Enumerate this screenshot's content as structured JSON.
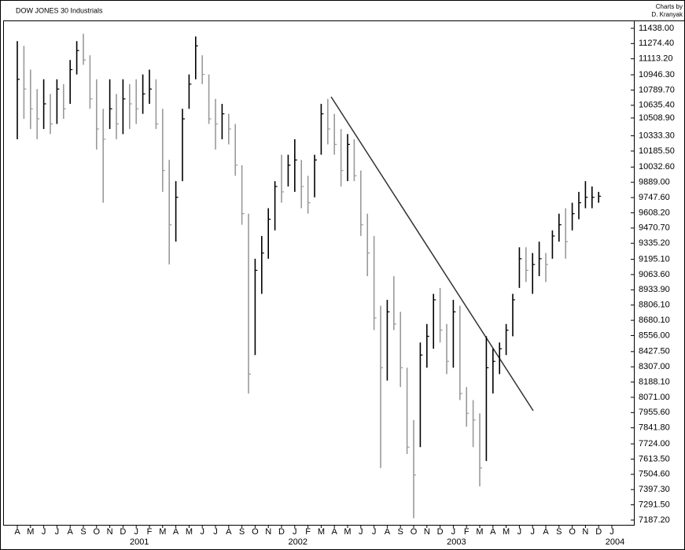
{
  "chart_data": {
    "type": "ohlc",
    "title": "DOW JONES 30 Industrials",
    "credit": [
      "Charts by",
      "D. Kranyak"
    ],
    "categories": [
      "A",
      null,
      "M",
      null,
      "J",
      null,
      "J",
      null,
      "A",
      null,
      "S",
      null,
      "O",
      null,
      "N",
      null,
      "D",
      null,
      "J",
      null,
      "F",
      null,
      "M",
      null,
      "A",
      null,
      "M",
      null,
      "J",
      null,
      "J",
      null,
      "A",
      null,
      "S",
      null,
      "O",
      null,
      "N",
      null,
      "D",
      null,
      "J",
      null,
      "F",
      null,
      "M",
      null,
      "A",
      null,
      "M",
      null,
      "J",
      null,
      "J",
      null,
      "A",
      null,
      "S",
      null,
      "O",
      null,
      "N",
      null,
      "D",
      null,
      "J",
      null,
      "F",
      null,
      "M",
      null,
      "A",
      null,
      "M",
      null,
      "J",
      null,
      "J",
      null,
      "A",
      null,
      "S",
      null,
      "O",
      null,
      "N",
      null,
      "D",
      null,
      "J",
      null
    ],
    "x_sublabels": [
      null,
      null,
      null,
      null,
      null,
      null,
      null,
      null,
      null,
      null,
      null,
      null,
      null,
      null,
      null,
      null,
      null,
      null,
      "2001",
      null,
      null,
      null,
      null,
      null,
      null,
      null,
      null,
      null,
      null,
      null,
      null,
      null,
      null,
      null,
      null,
      null,
      null,
      null,
      null,
      null,
      null,
      null,
      "2002",
      null,
      null,
      null,
      null,
      null,
      null,
      null,
      null,
      null,
      null,
      null,
      null,
      null,
      null,
      null,
      null,
      null,
      null,
      null,
      null,
      null,
      null,
      null,
      "2003",
      null,
      null,
      null,
      null,
      null,
      null,
      null,
      null,
      null,
      null,
      null,
      null,
      null,
      null,
      null,
      null,
      null,
      null,
      null,
      null,
      null,
      null,
      null,
      "2004",
      null
    ],
    "high": [
      11300,
      11250,
      11000,
      10800,
      10900,
      10750,
      10900,
      10850,
      11100,
      11300,
      11380,
      11150,
      10900,
      10600,
      10900,
      10750,
      10900,
      10850,
      10900,
      10950,
      11000,
      10900,
      10600,
      10100,
      9900,
      10600,
      10950,
      11350,
      11150,
      10950,
      10700,
      10650,
      10550,
      10450,
      10050,
      9600,
      9200,
      9400,
      9650,
      9900,
      10150,
      10150,
      10300,
      10100,
      9950,
      10150,
      10650,
      10700,
      10550,
      10400,
      10350,
      10300,
      10000,
      9600,
      9400,
      8800,
      8850,
      9050,
      8750,
      8300,
      7900,
      8500,
      8650,
      8900,
      8950,
      8650,
      8850,
      8800,
      8150,
      8050,
      7950,
      8550,
      8450,
      8500,
      8650,
      8900,
      9300,
      9300,
      9250,
      9350,
      9250,
      9450,
      9600,
      9650,
      9700,
      9800,
      9900,
      9850,
      9800,
      null,
      null,
      null
    ],
    "low": [
      10300,
      10500,
      10400,
      10300,
      10400,
      10350,
      10450,
      10500,
      10650,
      10950,
      11050,
      10600,
      10200,
      9700,
      10400,
      10300,
      10350,
      10400,
      10450,
      10550,
      10650,
      10400,
      9800,
      9150,
      9350,
      9900,
      10600,
      10900,
      10850,
      10450,
      10200,
      10300,
      10250,
      9950,
      9500,
      8100,
      8400,
      8900,
      9200,
      9450,
      9700,
      9850,
      9800,
      9650,
      9600,
      9750,
      10150,
      10250,
      10150,
      9850,
      9900,
      9900,
      9400,
      9050,
      8600,
      7550,
      8200,
      8600,
      8150,
      7650,
      7200,
      7700,
      8300,
      8450,
      8500,
      8250,
      8300,
      8050,
      7850,
      7700,
      7420,
      7600,
      8100,
      8250,
      8400,
      8550,
      8950,
      9000,
      8900,
      9050,
      9000,
      9200,
      9350,
      9200,
      9450,
      9550,
      9650,
      9650,
      9700,
      null,
      null,
      null
    ],
    "close": [
      10900,
      10800,
      10600,
      10500,
      10650,
      10450,
      10800,
      10600,
      11000,
      11200,
      11100,
      10700,
      10400,
      10300,
      10600,
      10450,
      10700,
      10650,
      10600,
      10750,
      10800,
      10450,
      10000,
      9500,
      9750,
      10500,
      10850,
      11250,
      10950,
      10500,
      10450,
      10550,
      10400,
      10050,
      9600,
      8250,
      9100,
      9250,
      9550,
      9850,
      9800,
      10050,
      10100,
      9850,
      9700,
      10100,
      10550,
      10400,
      10250,
      10000,
      10250,
      9950,
      9500,
      9250,
      8700,
      8300,
      8750,
      8650,
      8300,
      7700,
      7500,
      8400,
      8550,
      8850,
      8600,
      8350,
      8750,
      8100,
      7950,
      7900,
      7550,
      8300,
      8350,
      8450,
      8600,
      8850,
      9200,
      9100,
      9150,
      9200,
      9150,
      9400,
      9500,
      9350,
      9600,
      9700,
      9750,
      9750,
      9760,
      null,
      null,
      null
    ],
    "up_color": "#000000",
    "down_color": "#9a9a9a",
    "log_scale": true,
    "ylim": [
      7155,
      11523
    ],
    "yticks": [
      {
        "value": 11438,
        "label": "11438.00"
      },
      {
        "value": 11274.4,
        "label": "11274.40"
      },
      {
        "value": 11113.2,
        "label": "11113.20"
      },
      {
        "value": 10946.3,
        "label": "10946.30"
      },
      {
        "value": 10789.7,
        "label": "10789.70"
      },
      {
        "value": 10635.4,
        "label": "10635.40"
      },
      {
        "value": 10508.9,
        "label": "10508.90"
      },
      {
        "value": 10333.3,
        "label": "10333.30"
      },
      {
        "value": 10185.5,
        "label": "10185.50"
      },
      {
        "value": 10032.6,
        "label": "10032.60"
      },
      {
        "value": 9889,
        "label": "9889.00"
      },
      {
        "value": 9747.6,
        "label": "9747.60"
      },
      {
        "value": 9608.2,
        "label": "9608.20"
      },
      {
        "value": 9470.7,
        "label": "9470.70"
      },
      {
        "value": 9335.2,
        "label": "9335.20"
      },
      {
        "value": 9195.1,
        "label": "9195.10"
      },
      {
        "value": 9063.6,
        "label": "9063.60"
      },
      {
        "value": 8933.9,
        "label": "8933.90"
      },
      {
        "value": 8806.1,
        "label": "8806.10"
      },
      {
        "value": 8680.1,
        "label": "8680.10"
      },
      {
        "value": 8556,
        "label": "8556.00"
      },
      {
        "value": 8427.5,
        "label": "8427.50"
      },
      {
        "value": 8307,
        "label": "8307.00"
      },
      {
        "value": 8188.1,
        "label": "8188.10"
      },
      {
        "value": 8071,
        "label": "8071.00"
      },
      {
        "value": 7955.6,
        "label": "7955.60"
      },
      {
        "value": 7841.8,
        "label": "7841.80"
      },
      {
        "value": 7724,
        "label": "7724.00"
      },
      {
        "value": 7613.5,
        "label": "7613.50"
      },
      {
        "value": 7504.6,
        "label": "7504.60"
      },
      {
        "value": 7397.3,
        "label": "7397.30"
      },
      {
        "value": 7291.5,
        "label": "7291.50"
      },
      {
        "value": 7187.2,
        "label": "7187.20"
      }
    ]
  }
}
